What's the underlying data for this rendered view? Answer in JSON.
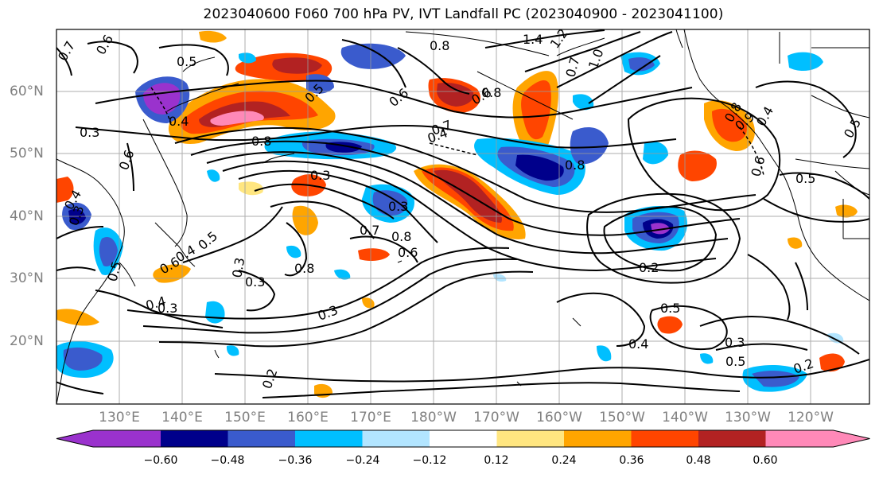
{
  "title": "2023040600 F060 700 hPa PV, IVT Landfall PC (2023040900 - 2023041100)",
  "lat_labels": [
    "60°N",
    "50°N",
    "40°N",
    "30°N",
    "20°N"
  ],
  "lon_labels": [
    "130°E",
    "140°E",
    "150°E",
    "160°E",
    "170°E",
    "180°W",
    "170°W",
    "160°W",
    "150°W",
    "140°W",
    "130°W",
    "120°W"
  ],
  "colorbar": {
    "ticks": [
      "−0.60",
      "−0.48",
      "−0.36",
      "−0.24",
      "−0.12",
      "0.12",
      "0.24",
      "0.36",
      "0.48",
      "0.60"
    ],
    "colors": [
      "#9a32cd",
      "#00008b",
      "#3a5bcd",
      "#00bfff",
      "#b2e5ff",
      "#ffffff",
      "#ffe680",
      "#ffa500",
      "#ff4500",
      "#b22222",
      "#ff89b8"
    ]
  },
  "contour_labels": [
    "0.7",
    "0.6",
    "0.5",
    "1.4",
    "1.2",
    "0.8",
    "0.7",
    "1.0",
    "0.8",
    "0.6",
    "0.6",
    "0.5",
    "0.4",
    "0.3",
    "0.8",
    "0.6",
    "0.3",
    "0.4",
    "0.7",
    "0.9",
    "0.8",
    "0.4",
    "0.5",
    "0.8",
    "0.5",
    "0.6",
    "0.3",
    "0.4",
    "0.3",
    "0.7",
    "0.8",
    "0.6",
    "0.8",
    "0.3",
    "0.2",
    "0.4",
    "0.3",
    "0.3",
    "0.5",
    "0.4",
    "0.3",
    "0.5",
    "0.2",
    "0.2",
    "0.5",
    "0.3",
    "0.6",
    "0.4",
    "0.5"
  ]
}
